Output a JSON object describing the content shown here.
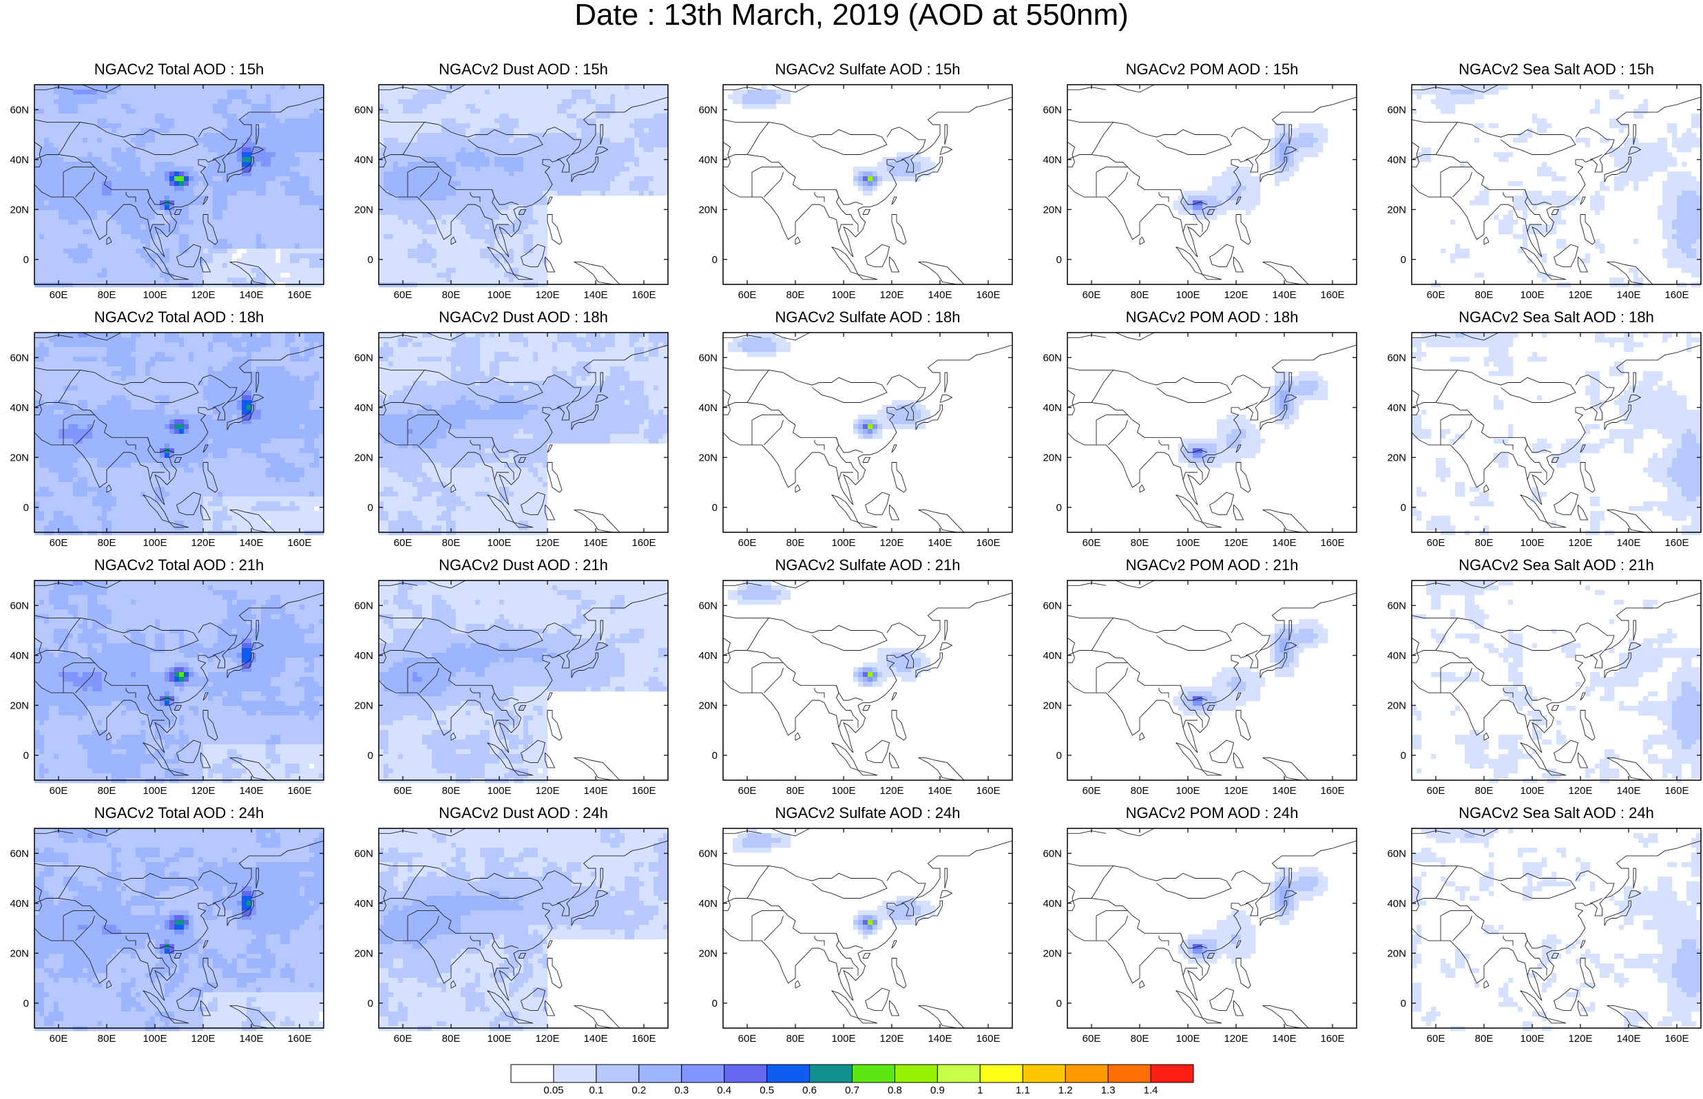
{
  "figure": {
    "title": "Date : 13th March, 2019 (AOD at 550nm)"
  },
  "panels": [
    {
      "title": "NGACv2 Total AOD : 15h",
      "species": "total",
      "hour": 15
    },
    {
      "title": "NGACv2 Dust AOD : 15h",
      "species": "dust",
      "hour": 15
    },
    {
      "title": "NGACv2 Sulfate AOD : 15h",
      "species": "sulfate",
      "hour": 15
    },
    {
      "title": "NGACv2 POM AOD : 15h",
      "species": "pom",
      "hour": 15
    },
    {
      "title": "NGACv2 Sea Salt AOD : 15h",
      "species": "seasalt",
      "hour": 15
    },
    {
      "title": "NGACv2 Total AOD : 18h",
      "species": "total",
      "hour": 18
    },
    {
      "title": "NGACv2 Dust AOD : 18h",
      "species": "dust",
      "hour": 18
    },
    {
      "title": "NGACv2 Sulfate AOD : 18h",
      "species": "sulfate",
      "hour": 18
    },
    {
      "title": "NGACv2 POM AOD : 18h",
      "species": "pom",
      "hour": 18
    },
    {
      "title": "NGACv2 Sea Salt AOD : 18h",
      "species": "seasalt",
      "hour": 18
    },
    {
      "title": "NGACv2 Total AOD : 21h",
      "species": "total",
      "hour": 21
    },
    {
      "title": "NGACv2 Dust AOD : 21h",
      "species": "dust",
      "hour": 21
    },
    {
      "title": "NGACv2 Sulfate AOD : 21h",
      "species": "sulfate",
      "hour": 21
    },
    {
      "title": "NGACv2 POM AOD : 21h",
      "species": "pom",
      "hour": 21
    },
    {
      "title": "NGACv2 Sea Salt AOD : 21h",
      "species": "seasalt",
      "hour": 21
    },
    {
      "title": "NGACv2 Total AOD : 24h",
      "species": "total",
      "hour": 24
    },
    {
      "title": "NGACv2 Dust AOD : 24h",
      "species": "dust",
      "hour": 24
    },
    {
      "title": "NGACv2 Sulfate AOD : 24h",
      "species": "sulfate",
      "hour": 24
    },
    {
      "title": "NGACv2 POM AOD : 24h",
      "species": "pom",
      "hour": 24
    },
    {
      "title": "NGACv2 Sea Salt  AOD : 24h",
      "species": "seasalt",
      "hour": 24
    }
  ],
  "map": {
    "lon_range": [
      50,
      170
    ],
    "lat_range": [
      -10,
      70
    ],
    "lon_ticks": [
      60,
      80,
      100,
      120,
      140,
      160
    ],
    "lon_tick_labels": [
      "60E",
      "80E",
      "100E",
      "120E",
      "140E",
      "160E"
    ],
    "lat_ticks": [
      0,
      20,
      40,
      60
    ],
    "lat_tick_labels": [
      "0",
      "20N",
      "40N",
      "60N"
    ]
  },
  "colorbar": {
    "labels": [
      "0.05",
      "0.1",
      "0.2",
      "0.3",
      "0.4",
      "0.5",
      "0.6",
      "0.7",
      "0.8",
      "0.9",
      "1",
      "1.1",
      "1.2",
      "1.3",
      "1.4"
    ],
    "colors": [
      "#ffffff",
      "#d6e0ff",
      "#b7c8ff",
      "#9db4ff",
      "#8296ff",
      "#6468ee",
      "#0f5df0",
      "#119090",
      "#5ee612",
      "#96f000",
      "#c8ff4a",
      "#ffff1a",
      "#ffc800",
      "#ff9b00",
      "#ff6e00",
      "#ff1e14"
    ]
  }
}
